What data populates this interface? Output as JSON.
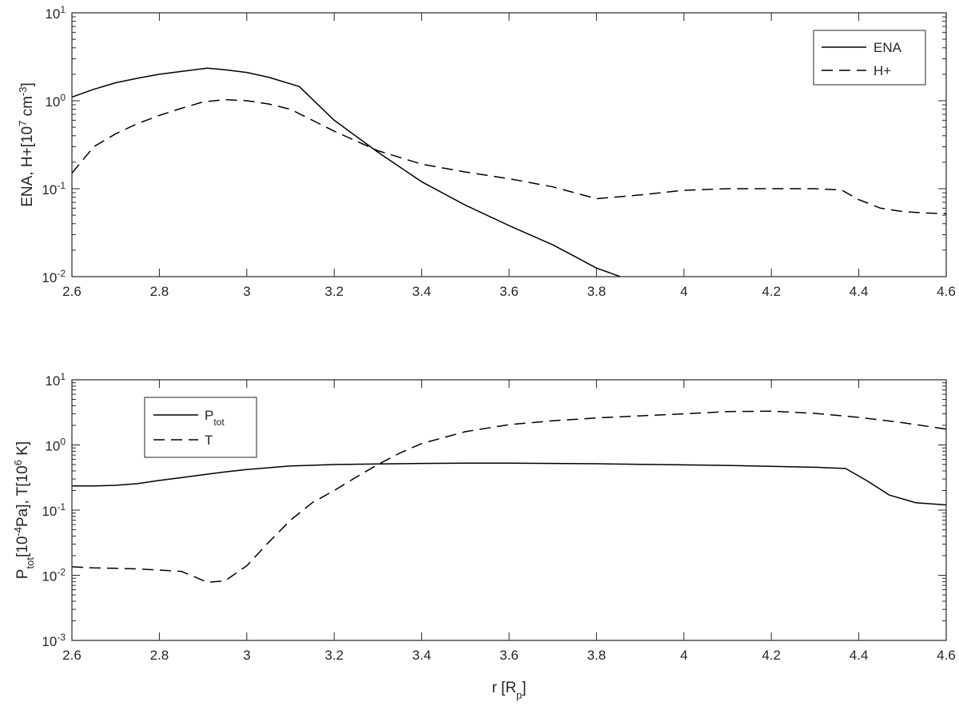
{
  "chart_data": [
    {
      "type": "line",
      "title": "",
      "xlabel": "",
      "ylabel": "ENA, H+[10^7 cm^-3]",
      "ylabel_parts": {
        "main": "ENA, H+[10",
        "exp": "7",
        "mid": " cm",
        "exp2": "-3",
        "end": "]"
      },
      "xlim": [
        2.6,
        4.6
      ],
      "ylim": [
        0.01,
        10
      ],
      "yscale": "log",
      "grid": false,
      "legend_position": "top-right",
      "x_ticks": [
        "2.6",
        "2.8",
        "3",
        "3.2",
        "3.4",
        "3.6",
        "3.8",
        "4",
        "4.2",
        "4.4",
        "4.6"
      ],
      "y_ticks": [
        {
          "base": "10",
          "exp": "-2"
        },
        {
          "base": "10",
          "exp": "-1"
        },
        {
          "base": "10",
          "exp": "0"
        },
        {
          "base": "10",
          "exp": "1"
        }
      ],
      "series": [
        {
          "name": "ENA",
          "legend_main": "ENA",
          "legend_sub": "",
          "dash": "solid",
          "x": [
            2.6,
            2.65,
            2.7,
            2.75,
            2.8,
            2.85,
            2.91,
            2.95,
            3.0,
            3.05,
            3.12,
            3.2,
            3.3,
            3.4,
            3.5,
            3.6,
            3.7,
            3.75,
            3.8,
            3.86
          ],
          "values": [
            1.1,
            1.35,
            1.6,
            1.8,
            2.0,
            2.15,
            2.35,
            2.25,
            2.1,
            1.85,
            1.45,
            0.6,
            0.26,
            0.12,
            0.065,
            0.038,
            0.023,
            0.017,
            0.0125,
            0.0098
          ]
        },
        {
          "name": "H+",
          "legend_main": "H+",
          "legend_sub": "",
          "dash": "dashed",
          "x": [
            2.6,
            2.65,
            2.7,
            2.75,
            2.8,
            2.85,
            2.9,
            2.95,
            3.0,
            3.05,
            3.1,
            3.2,
            3.3,
            3.4,
            3.5,
            3.6,
            3.7,
            3.8,
            3.9,
            4.0,
            4.1,
            4.2,
            4.3,
            4.36,
            4.4,
            4.45,
            4.5,
            4.55,
            4.6
          ],
          "values": [
            0.15,
            0.3,
            0.42,
            0.55,
            0.68,
            0.82,
            0.97,
            1.03,
            1.0,
            0.92,
            0.8,
            0.45,
            0.27,
            0.19,
            0.155,
            0.13,
            0.105,
            0.077,
            0.085,
            0.096,
            0.1,
            0.1,
            0.1,
            0.097,
            0.075,
            0.06,
            0.055,
            0.053,
            0.052
          ]
        }
      ]
    },
    {
      "type": "line",
      "title": "",
      "xlabel": "r [R_p]",
      "xlabel_parts": {
        "main": "r [R",
        "sub": "p",
        "end": "]"
      },
      "ylabel": "P_tot[10^-4 Pa], T[10^6 K]",
      "ylabel_parts": {
        "a": "P",
        "a_sub": "tot",
        "b": "[10",
        "b_exp": "-4",
        "c": "Pa], T[10",
        "c_exp": "6",
        "d": " K]"
      },
      "xlim": [
        2.6,
        4.6
      ],
      "ylim": [
        0.001,
        10
      ],
      "yscale": "log",
      "grid": false,
      "legend_position": "top-left",
      "x_ticks": [
        "2.6",
        "2.8",
        "3",
        "3.2",
        "3.4",
        "3.6",
        "3.8",
        "4",
        "4.2",
        "4.4",
        "4.6"
      ],
      "y_ticks": [
        {
          "base": "10",
          "exp": "-3"
        },
        {
          "base": "10",
          "exp": "-2"
        },
        {
          "base": "10",
          "exp": "-1"
        },
        {
          "base": "10",
          "exp": "0"
        },
        {
          "base": "10",
          "exp": "1"
        }
      ],
      "series": [
        {
          "name": "P_tot",
          "legend_main": "P",
          "legend_sub": "tot",
          "dash": "solid",
          "x": [
            2.6,
            2.65,
            2.7,
            2.75,
            2.8,
            2.85,
            2.9,
            2.95,
            3.0,
            3.1,
            3.2,
            3.3,
            3.4,
            3.5,
            3.6,
            3.7,
            3.8,
            3.9,
            4.0,
            4.1,
            4.2,
            4.3,
            4.37,
            4.42,
            4.47,
            4.53,
            4.6
          ],
          "values": [
            0.235,
            0.235,
            0.24,
            0.255,
            0.285,
            0.315,
            0.35,
            0.385,
            0.42,
            0.475,
            0.5,
            0.51,
            0.52,
            0.525,
            0.525,
            0.52,
            0.515,
            0.505,
            0.495,
            0.485,
            0.47,
            0.455,
            0.435,
            0.28,
            0.17,
            0.13,
            0.12
          ]
        },
        {
          "name": "T",
          "legend_main": "T",
          "legend_sub": "",
          "dash": "dashed",
          "x": [
            2.6,
            2.65,
            2.7,
            2.75,
            2.8,
            2.85,
            2.88,
            2.91,
            2.95,
            3.0,
            3.05,
            3.1,
            3.15,
            3.2,
            3.25,
            3.3,
            3.35,
            3.4,
            3.5,
            3.6,
            3.7,
            3.8,
            3.9,
            4.0,
            4.1,
            4.2,
            4.3,
            4.4,
            4.5,
            4.6
          ],
          "values": [
            0.0135,
            0.013,
            0.0128,
            0.0125,
            0.012,
            0.0115,
            0.0095,
            0.0078,
            0.0082,
            0.014,
            0.032,
            0.07,
            0.13,
            0.2,
            0.32,
            0.5,
            0.75,
            1.05,
            1.6,
            2.05,
            2.35,
            2.6,
            2.8,
            3.0,
            3.25,
            3.3,
            3.05,
            2.65,
            2.2,
            1.75
          ]
        }
      ]
    }
  ]
}
